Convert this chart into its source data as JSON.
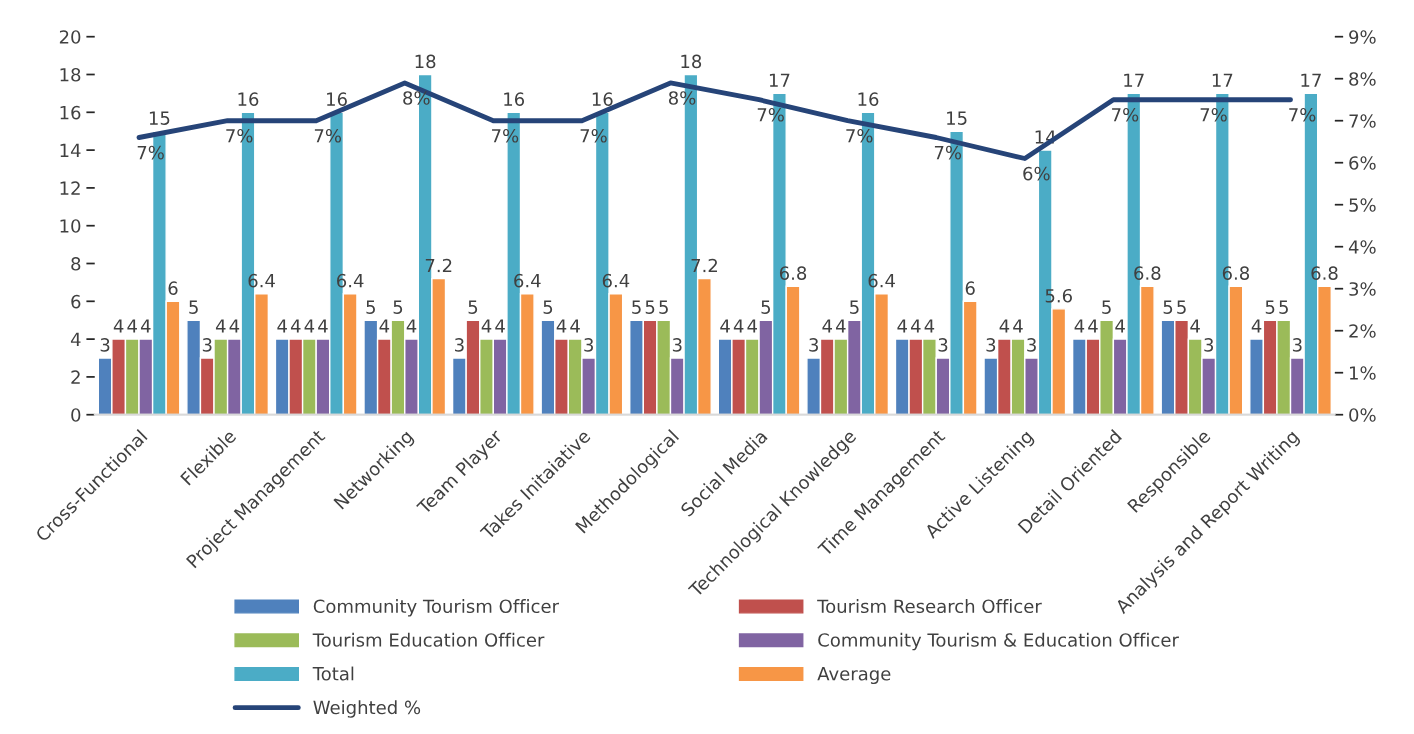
{
  "chart_data": {
    "type": "bar",
    "categories": [
      "Cross-Functional",
      "Flexible",
      "Project Management",
      "Networking",
      "Team Player",
      "Takes Initaiative",
      "Methodological",
      "Social Media",
      "Technological Knowledge",
      "Time Management",
      "Active Listening",
      "Detail Oriented",
      "Responsible",
      "Analysis and Report Writing"
    ],
    "series": [
      {
        "name": "Community Tourism Officer",
        "color": "#4f81bd",
        "values": [
          3,
          5,
          4,
          5,
          3,
          5,
          5,
          4,
          3,
          4,
          3,
          4,
          5,
          4
        ]
      },
      {
        "name": "Tourism Research Officer",
        "color": "#c0504d",
        "values": [
          4,
          3,
          4,
          4,
          5,
          4,
          5,
          4,
          4,
          4,
          4,
          4,
          5,
          5
        ]
      },
      {
        "name": "Tourism Education Officer",
        "color": "#9bbb59",
        "values": [
          4,
          4,
          4,
          5,
          4,
          4,
          5,
          4,
          4,
          4,
          4,
          5,
          4,
          5
        ]
      },
      {
        "name": "Community Tourism & Education Officer",
        "color": "#8064a2",
        "values": [
          4,
          4,
          4,
          4,
          4,
          3,
          3,
          5,
          5,
          3,
          3,
          4,
          3,
          3
        ]
      },
      {
        "name": "Total",
        "color": "#4bacc6",
        "values": [
          15,
          16,
          16,
          18,
          16,
          16,
          18,
          17,
          16,
          15,
          14,
          17,
          17,
          17
        ]
      },
      {
        "name": "Average",
        "color": "#f79646",
        "values": [
          6,
          6.4,
          6.4,
          7.2,
          6.4,
          6.4,
          7.2,
          6.8,
          6.4,
          6,
          5.6,
          6.8,
          6.8,
          6.8
        ]
      },
      {
        "name": "Weighted %",
        "color": "#264478",
        "type": "line",
        "axis": "y2",
        "values": [
          6.6,
          7.0,
          7.0,
          7.9,
          7.0,
          7.0,
          7.9,
          7.5,
          7.0,
          6.6,
          6.1,
          7.5,
          7.5,
          7.5
        ],
        "value_labels": [
          "7%",
          "7%",
          "7%",
          "8%",
          "7%",
          "7%",
          "8%",
          "7%",
          "7%",
          "7%",
          "6%",
          "7%",
          "7%",
          "7%"
        ]
      }
    ],
    "ylim": [
      0,
      20
    ],
    "yticks": [
      0,
      2,
      4,
      6,
      8,
      10,
      12,
      14,
      16,
      18,
      20
    ],
    "y2lim": [
      0,
      9
    ],
    "y2ticks": [
      {
        "value": 0,
        "label": "0%"
      },
      {
        "value": 1,
        "label": "1%"
      },
      {
        "value": 2,
        "label": "2%"
      },
      {
        "value": 3,
        "label": "3%"
      },
      {
        "value": 4,
        "label": "4%"
      },
      {
        "value": 5,
        "label": "5%"
      },
      {
        "value": 6,
        "label": "6%"
      },
      {
        "value": 7,
        "label": "7%"
      },
      {
        "value": 8,
        "label": "8%"
      },
      {
        "value": 9,
        "label": "9%"
      }
    ],
    "data_labels": true,
    "grid": false,
    "legend": "bottom"
  }
}
